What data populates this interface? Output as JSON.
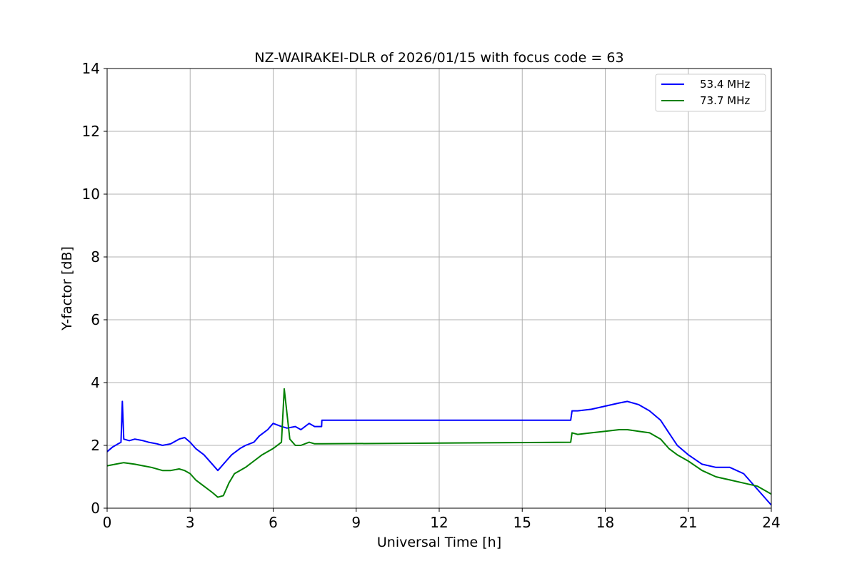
{
  "chart_data": {
    "type": "line",
    "title": "NZ-WAIRAKEI-DLR of 2026/01/15 with focus code = 63",
    "xlabel": "Universal Time [h]",
    "ylabel": "Y-factor [dB]",
    "xlim": [
      0,
      24
    ],
    "ylim": [
      0,
      14
    ],
    "xticks": [
      0,
      3,
      6,
      9,
      12,
      15,
      18,
      21,
      24
    ],
    "yticks": [
      0,
      2,
      4,
      6,
      8,
      10,
      12,
      14
    ],
    "grid": true,
    "legend_position": "top-right",
    "series": [
      {
        "name": "53.4 MHz",
        "color": "#0000ff",
        "x": [
          0,
          0.2,
          0.4,
          0.5,
          0.55,
          0.6,
          0.8,
          1.0,
          1.3,
          1.5,
          1.8,
          2.0,
          2.3,
          2.6,
          2.8,
          3.0,
          3.2,
          3.5,
          3.8,
          4.0,
          4.1,
          4.3,
          4.5,
          4.8,
          5.0,
          5.3,
          5.5,
          5.8,
          6.0,
          6.3,
          6.5,
          6.8,
          7.0,
          7.3,
          7.5,
          7.75,
          7.76,
          16.75,
          16.8,
          17.0,
          17.5,
          18.0,
          18.5,
          18.8,
          19.2,
          19.6,
          20.0,
          20.3,
          20.6,
          21.0,
          21.5,
          22.0,
          22.5,
          23.0,
          23.5,
          24.0
        ],
        "y": [
          1.8,
          1.95,
          2.05,
          2.1,
          3.4,
          2.2,
          2.15,
          2.2,
          2.15,
          2.1,
          2.05,
          2.0,
          2.05,
          2.2,
          2.25,
          2.1,
          1.9,
          1.7,
          1.4,
          1.2,
          1.3,
          1.5,
          1.7,
          1.9,
          2.0,
          2.1,
          2.3,
          2.5,
          2.7,
          2.6,
          2.55,
          2.6,
          2.5,
          2.7,
          2.6,
          2.6,
          2.8,
          2.8,
          3.1,
          3.1,
          3.15,
          3.25,
          3.35,
          3.4,
          3.3,
          3.1,
          2.8,
          2.4,
          2.0,
          1.7,
          1.4,
          1.3,
          1.3,
          1.1,
          0.6,
          0.1
        ]
      },
      {
        "name": "73.7 MHz",
        "color": "#008000",
        "x": [
          0,
          0.3,
          0.6,
          1.0,
          1.3,
          1.6,
          2.0,
          2.3,
          2.6,
          2.8,
          3.0,
          3.2,
          3.5,
          3.8,
          4.0,
          4.2,
          4.4,
          4.6,
          4.8,
          5.0,
          5.3,
          5.6,
          5.8,
          6.0,
          6.3,
          6.4,
          6.6,
          6.8,
          7.0,
          7.3,
          7.5,
          7.75,
          7.76,
          16.75,
          16.8,
          17.0,
          17.5,
          18.0,
          18.5,
          18.8,
          19.2,
          19.6,
          20.0,
          20.3,
          20.6,
          21.0,
          21.5,
          22.0,
          22.5,
          23.0,
          23.5,
          24.0
        ],
        "y": [
          1.35,
          1.4,
          1.45,
          1.4,
          1.35,
          1.3,
          1.2,
          1.2,
          1.25,
          1.2,
          1.1,
          0.9,
          0.7,
          0.5,
          0.35,
          0.4,
          0.8,
          1.1,
          1.2,
          1.3,
          1.5,
          1.7,
          1.8,
          1.9,
          2.1,
          3.8,
          2.2,
          2.0,
          2.0,
          2.1,
          2.05,
          2.05,
          2.05,
          2.1,
          2.4,
          2.35,
          2.4,
          2.45,
          2.5,
          2.5,
          2.45,
          2.4,
          2.2,
          1.9,
          1.7,
          1.5,
          1.2,
          1.0,
          0.9,
          0.8,
          0.7,
          0.45
        ]
      }
    ]
  }
}
